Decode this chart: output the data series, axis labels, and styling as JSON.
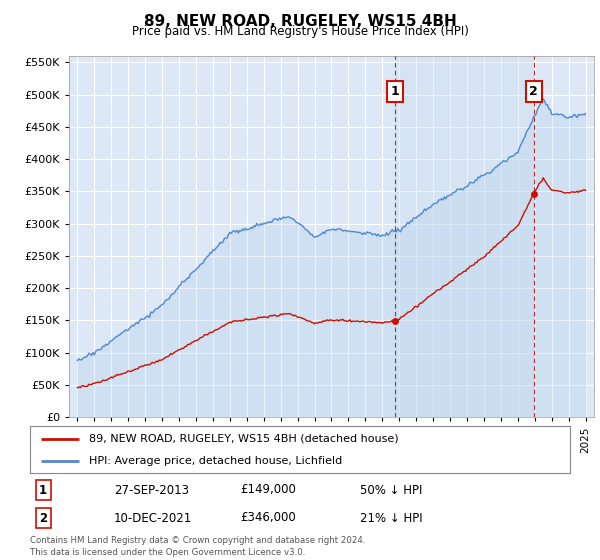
{
  "title": "89, NEW ROAD, RUGELEY, WS15 4BH",
  "subtitle": "Price paid vs. HM Land Registry's House Price Index (HPI)",
  "hpi_color": "#5588cc",
  "price_color": "#cc1100",
  "background_color": "#ffffff",
  "plot_bg_color": "#dce8f5",
  "grid_color": "#ffffff",
  "shade_color": "#c8dcf0",
  "ylim": [
    0,
    560000
  ],
  "yticks": [
    0,
    50000,
    100000,
    150000,
    200000,
    250000,
    300000,
    350000,
    400000,
    450000,
    500000,
    550000
  ],
  "legend1": "89, NEW ROAD, RUGELEY, WS15 4BH (detached house)",
  "legend2": "HPI: Average price, detached house, Lichfield",
  "annotation1_label": "1",
  "annotation1_date": "27-SEP-2013",
  "annotation1_price": "£149,000",
  "annotation1_hpi": "50% ↓ HPI",
  "annotation2_label": "2",
  "annotation2_date": "10-DEC-2021",
  "annotation2_price": "£346,000",
  "annotation2_hpi": "21% ↓ HPI",
  "footer": "Contains HM Land Registry data © Crown copyright and database right 2024.\nThis data is licensed under the Open Government Licence v3.0.",
  "sale1_x": 2013.75,
  "sale1_y": 149000,
  "sale2_x": 2021.94,
  "sale2_y": 346000,
  "xmin": 1994.5,
  "xmax": 2025.5
}
